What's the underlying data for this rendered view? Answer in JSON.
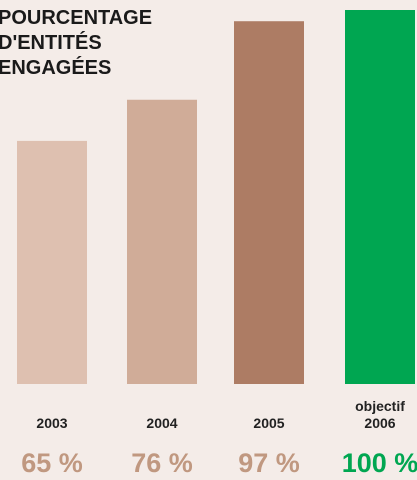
{
  "chart_data": {
    "type": "bar",
    "title_lines": [
      "POURCENTAGE",
      "D'ENTITÉS",
      "ENGAGÉES"
    ],
    "categories": [
      [
        "2003"
      ],
      [
        "2004"
      ],
      [
        "2005"
      ],
      [
        "objectif",
        "2006"
      ]
    ],
    "values": [
      65,
      76,
      97,
      100
    ],
    "value_labels": [
      "65 %",
      "76 %",
      "97 %",
      "100 %"
    ],
    "ylim": [
      0,
      100
    ],
    "grid": false,
    "legend": "none",
    "colors": {
      "bars": [
        "#dec0b0",
        "#d0ac98",
        "#ad7c64",
        "#00a651"
      ],
      "value_labels": [
        "#c09880",
        "#c09880",
        "#c09880",
        "#00a651"
      ],
      "category_labels": "#222222",
      "title": "#1a1a1a"
    }
  }
}
